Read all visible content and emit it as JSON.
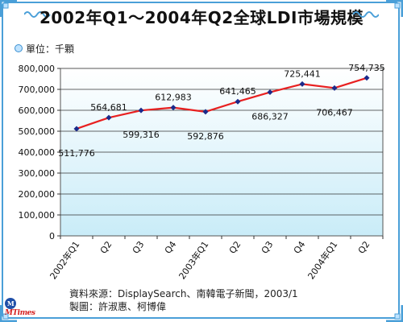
{
  "title": "2002年Q1～2004年Q2全球LDI市場規模",
  "unit_label": "單位：千顆",
  "source_line": "資料來源：DisplaySearch、南韓電子新聞，2003/1",
  "maker_line": "製圖：許淑惠、柯博偉",
  "logo_text": "MTimes",
  "colors": {
    "frame": "#4a9fd8",
    "line": "#e82020",
    "marker": "#1a2a8a",
    "plot_top": "#ffffff",
    "plot_bottom": "#c9ecf8"
  },
  "chart_data": {
    "type": "line",
    "title": "2002年Q1～2004年Q2全球LDI市場規模",
    "categories": [
      "2002年Q1",
      "Q2",
      "Q3",
      "Q4",
      "2003年Q1",
      "Q2",
      "Q3",
      "Q4",
      "2004年Q1",
      "Q2"
    ],
    "series": [
      {
        "values": [
          511776,
          564681,
          599316,
          612983,
          592876,
          641465,
          686327,
          725441,
          706467,
          754735
        ],
        "labels": [
          "511,776",
          "564,681",
          "599,316",
          "612,983",
          "592,876",
          "641,465",
          "686,327",
          "725,441",
          "706,467",
          "754,735"
        ]
      }
    ],
    "ylim": [
      0,
      800000
    ],
    "yticks": [
      0,
      100000,
      200000,
      300000,
      400000,
      500000,
      600000,
      700000,
      800000
    ],
    "ytick_labels": [
      "0",
      "100,000",
      "200,000",
      "300,000",
      "400,000",
      "500,000",
      "600,000",
      "700,000",
      "800,000"
    ],
    "label_side": [
      "below",
      "above",
      "below",
      "above",
      "below",
      "above",
      "below",
      "above",
      "below",
      "above"
    ],
    "grid": true
  }
}
